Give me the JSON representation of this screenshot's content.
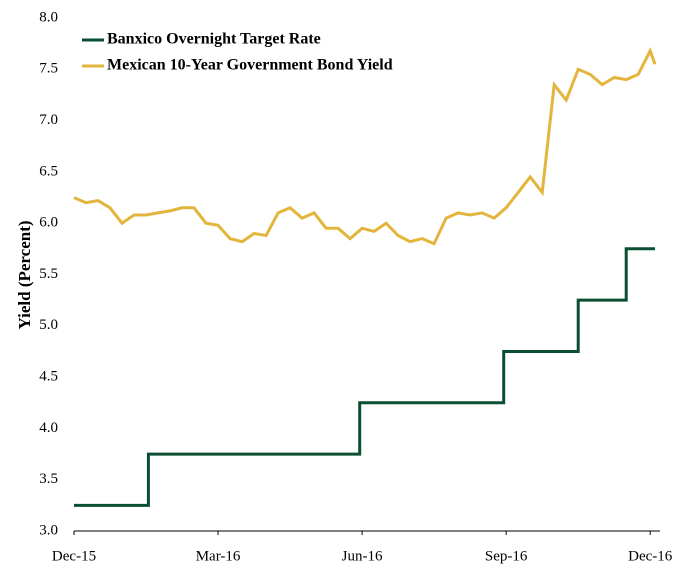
{
  "chart_data": {
    "type": "line",
    "y_label": "Yield (Percent)",
    "xlim": [
      0,
      12.1
    ],
    "xticks": [
      {
        "value": 0,
        "label": "Dec-15"
      },
      {
        "value": 3,
        "label": "Mar-16"
      },
      {
        "value": 6,
        "label": "Jun-16"
      },
      {
        "value": 9,
        "label": "Sep-16"
      },
      {
        "value": 12,
        "label": "Dec-16"
      }
    ],
    "ylim": [
      3.0,
      8.0
    ],
    "yticks": [
      {
        "value": 3.0,
        "label": "3.0"
      },
      3.5,
      {
        "value": 4.0,
        "label": "4.0"
      },
      4.5,
      {
        "value": 5.0,
        "label": "5.0"
      },
      5.5,
      {
        "value": 6.0,
        "label": "6.0"
      },
      6.5,
      {
        "value": 7.0,
        "label": "7.0"
      },
      7.5,
      {
        "value": 8.0,
        "label": "8.0"
      }
    ],
    "legend": "upper left",
    "series": [
      {
        "name": "Banxico Overnight Target Rate",
        "color": "#0b4f32",
        "x": [
          0,
          1.55,
          1.55,
          5.95,
          5.95,
          8.95,
          8.95,
          10.5,
          10.5,
          11.5,
          11.5,
          12.1
        ],
        "values": [
          3.25,
          3.25,
          3.75,
          3.75,
          4.25,
          4.25,
          4.75,
          4.75,
          5.25,
          5.25,
          5.75,
          5.75
        ]
      },
      {
        "name": "Mexican 10-Year Government Bond Yield",
        "color": "#e3b53c",
        "x": [
          0,
          0.25,
          0.5,
          0.75,
          1.0,
          1.25,
          1.5,
          1.75,
          2.0,
          2.25,
          2.5,
          2.75,
          3.0,
          3.25,
          3.5,
          3.75,
          4.0,
          4.25,
          4.5,
          4.75,
          5.0,
          5.25,
          5.5,
          5.75,
          6.0,
          6.25,
          6.5,
          6.75,
          7.0,
          7.25,
          7.5,
          7.75,
          8.0,
          8.25,
          8.5,
          8.75,
          9.0,
          9.25,
          9.5,
          9.75,
          10.0,
          10.25,
          10.5,
          10.75,
          11.0,
          11.25,
          11.5,
          11.75,
          12.0,
          12.1
        ],
        "values": [
          6.25,
          6.2,
          6.22,
          6.15,
          6.0,
          6.08,
          6.08,
          6.1,
          6.12,
          6.15,
          6.15,
          6.0,
          5.98,
          5.85,
          5.82,
          5.9,
          5.88,
          6.1,
          6.15,
          6.05,
          6.1,
          5.95,
          5.95,
          5.85,
          5.95,
          5.92,
          6.0,
          5.88,
          5.82,
          5.85,
          5.8,
          6.05,
          6.1,
          6.08,
          6.1,
          6.05,
          6.15,
          6.3,
          6.45,
          6.3,
          7.35,
          7.2,
          7.5,
          7.45,
          7.35,
          7.42,
          7.4,
          7.45,
          7.68,
          7.55
        ]
      }
    ]
  }
}
